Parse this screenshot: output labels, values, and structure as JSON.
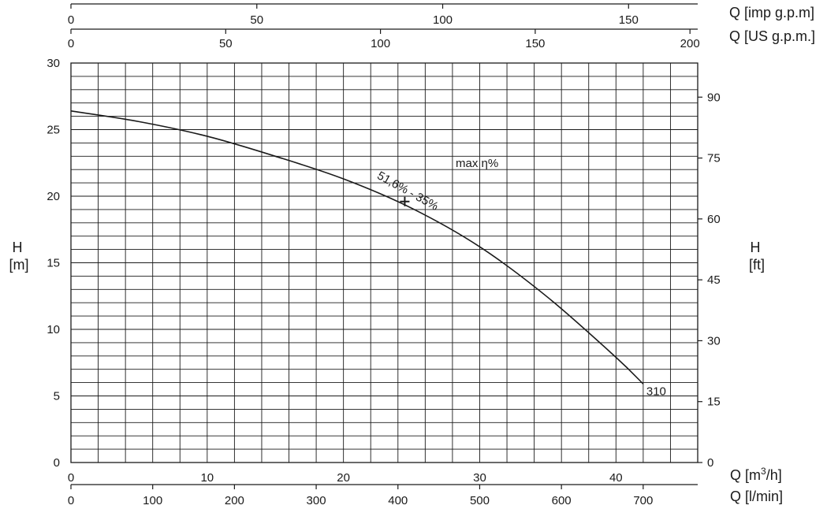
{
  "chart_data": {
    "type": "line",
    "title": "",
    "x_axes": [
      {
        "label": "Q [m³/h]",
        "label_main": "Q [m",
        "label_sup": "3",
        "label_tail": "/h]",
        "ticks": [
          0,
          10,
          20,
          30,
          40
        ],
        "range": [
          0,
          46
        ]
      },
      {
        "label": "Q [l/min]",
        "ticks": [
          0,
          100,
          200,
          300,
          400,
          500,
          600,
          700
        ],
        "range": [
          0,
          766.7
        ]
      },
      {
        "label": "Q [imp g.p.m]",
        "ticks": [
          0,
          50,
          100,
          150
        ],
        "range": [
          0,
          168.6
        ]
      },
      {
        "label": "Q [US g.p.m.]",
        "ticks": [
          0,
          50,
          100,
          150,
          200
        ],
        "range": [
          0,
          202.5
        ]
      }
    ],
    "y_axes": [
      {
        "label_top": "H",
        "label_bottom": "[m]",
        "ticks": [
          0,
          5,
          10,
          15,
          20,
          25,
          30
        ],
        "range": [
          0,
          30
        ]
      },
      {
        "label_top": "H",
        "label_bottom": "[ft]",
        "ticks": [
          0,
          15,
          30,
          45,
          60,
          75,
          90
        ],
        "range": [
          0,
          98.4
        ]
      }
    ],
    "grid": true,
    "series": [
      {
        "name": "310",
        "x": [
          0,
          5,
          10,
          15,
          20,
          25,
          30,
          35,
          40,
          42
        ],
        "y": [
          26.4,
          25.6,
          24.5,
          23.0,
          21.3,
          19.1,
          16.2,
          12.4,
          7.9,
          5.9
        ]
      }
    ],
    "annotations": {
      "bep_text": "51,6% - 35%",
      "max_eta_text": "max η%",
      "bep_point": {
        "x": 24.5,
        "y": 19.6
      }
    }
  }
}
